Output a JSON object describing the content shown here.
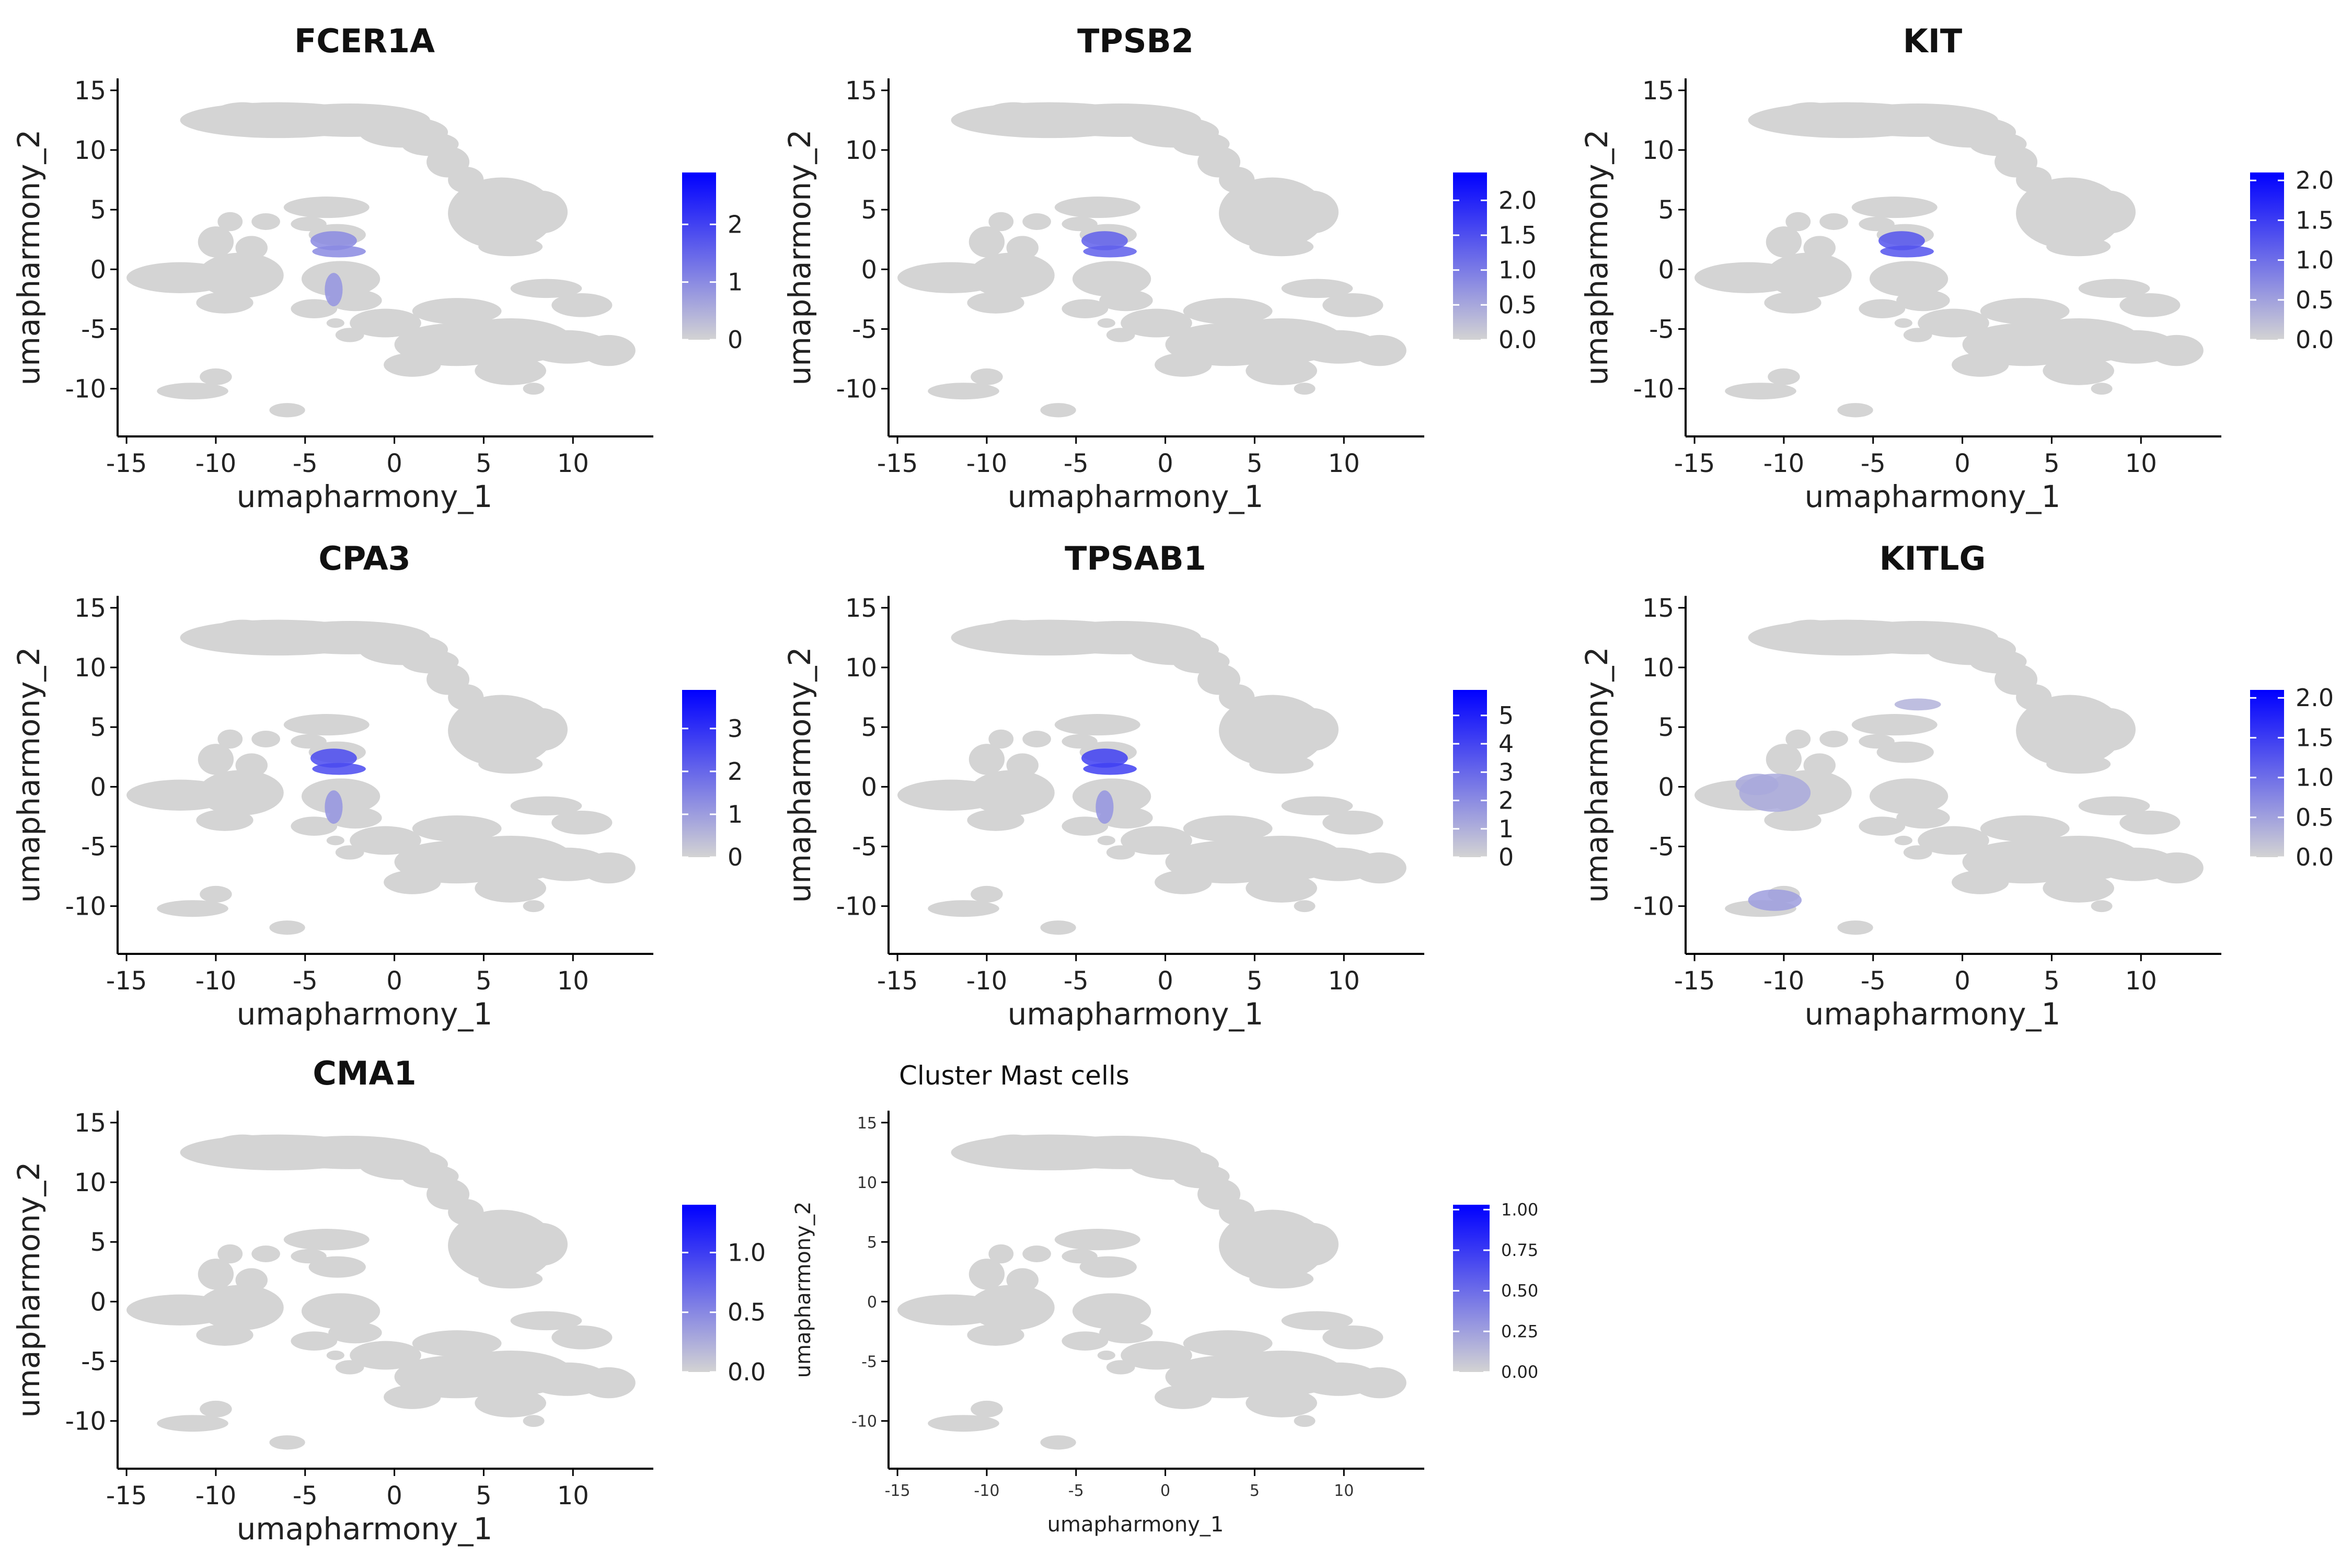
{
  "colors": {
    "low": "#d3d3d3",
    "high": "#0000ff",
    "axis": "#000000",
    "cell": "#d4d4d4"
  },
  "chart_data": [
    {
      "type": "scatter",
      "title": "FCER1A",
      "xlabel": "umapharmony_1",
      "ylabel": "umapharmony_2",
      "xlim": [
        -15.5,
        14.5
      ],
      "ylim": [
        -14,
        16
      ],
      "xticks": [
        "-15",
        "-10",
        "-5",
        "0",
        "5",
        "10"
      ],
      "yticks": [
        "-10",
        "-5",
        "0",
        "5",
        "10",
        "15"
      ],
      "legend": {
        "position": "right",
        "min": 0,
        "max": 2.9,
        "ticks": [
          "0",
          "1",
          "2"
        ]
      },
      "highlight": [
        {
          "cluster": "mast",
          "level": 0.35
        },
        {
          "cluster": "lower",
          "level": 0.3
        }
      ]
    },
    {
      "type": "scatter",
      "title": "TPSB2",
      "xlabel": "umapharmony_1",
      "ylabel": "umapharmony_2",
      "xlim": [
        -15.5,
        14.5
      ],
      "ylim": [
        -14,
        16
      ],
      "xticks": [
        "-15",
        "-10",
        "-5",
        "0",
        "5",
        "10"
      ],
      "yticks": [
        "-10",
        "-5",
        "0",
        "5",
        "10",
        "15"
      ],
      "legend": {
        "position": "right",
        "min": 0,
        "max": 2.4,
        "ticks": [
          "0.0",
          "0.5",
          "1.0",
          "1.5",
          "2.0"
        ]
      },
      "highlight": [
        {
          "cluster": "mast",
          "level": 0.55
        }
      ]
    },
    {
      "type": "scatter",
      "title": "KIT",
      "xlabel": "umapharmony_1",
      "ylabel": "umapharmony_2",
      "xlim": [
        -15.5,
        14.5
      ],
      "ylim": [
        -14,
        16
      ],
      "xticks": [
        "-15",
        "-10",
        "-5",
        "0",
        "5",
        "10"
      ],
      "yticks": [
        "-10",
        "-5",
        "0",
        "5",
        "10",
        "15"
      ],
      "legend": {
        "position": "right",
        "min": 0,
        "max": 2.1,
        "ticks": [
          "0.0",
          "0.5",
          "1.0",
          "1.5",
          "2.0"
        ]
      },
      "highlight": [
        {
          "cluster": "mast",
          "level": 0.6
        }
      ]
    },
    {
      "type": "scatter",
      "title": "CPA3",
      "xlabel": "umapharmony_1",
      "ylabel": "umapharmony_2",
      "xlim": [
        -15.5,
        14.5
      ],
      "ylim": [
        -14,
        16
      ],
      "xticks": [
        "-15",
        "-10",
        "-5",
        "0",
        "5",
        "10"
      ],
      "yticks": [
        "-10",
        "-5",
        "0",
        "5",
        "10",
        "15"
      ],
      "legend": {
        "position": "right",
        "min": 0,
        "max": 3.9,
        "ticks": [
          "0",
          "1",
          "2",
          "3"
        ]
      },
      "highlight": [
        {
          "cluster": "mast",
          "level": 0.65
        },
        {
          "cluster": "lower",
          "level": 0.3
        }
      ]
    },
    {
      "type": "scatter",
      "title": "TPSAB1",
      "xlabel": "umapharmony_1",
      "ylabel": "umapharmony_2",
      "xlim": [
        -15.5,
        14.5
      ],
      "ylim": [
        -14,
        16
      ],
      "xticks": [
        "-15",
        "-10",
        "-5",
        "0",
        "5",
        "10"
      ],
      "yticks": [
        "-10",
        "-5",
        "0",
        "5",
        "10",
        "15"
      ],
      "legend": {
        "position": "right",
        "min": 0,
        "max": 5.9,
        "ticks": [
          "0",
          "1",
          "2",
          "3",
          "4",
          "5"
        ]
      },
      "highlight": [
        {
          "cluster": "mast",
          "level": 0.7
        },
        {
          "cluster": "lower",
          "level": 0.3
        }
      ]
    },
    {
      "type": "scatter",
      "title": "KITLG",
      "xlabel": "umapharmony_1",
      "ylabel": "umapharmony_2",
      "xlim": [
        -15.5,
        14.5
      ],
      "ylim": [
        -14,
        16
      ],
      "xticks": [
        "-15",
        "-10",
        "-5",
        "0",
        "5",
        "10"
      ],
      "yticks": [
        "-10",
        "-5",
        "0",
        "5",
        "10",
        "15"
      ],
      "legend": {
        "position": "right",
        "min": 0,
        "max": 2.1,
        "ticks": [
          "0.0",
          "0.5",
          "1.0",
          "1.5",
          "2.0"
        ]
      },
      "highlight": [
        {
          "cluster": "left",
          "level": 0.2
        },
        {
          "cluster": "bottomleft",
          "level": 0.25
        },
        {
          "cluster": "upper",
          "level": 0.15
        }
      ]
    },
    {
      "type": "scatter",
      "title": "CMA1",
      "xlabel": "umapharmony_1",
      "ylabel": "umapharmony_2",
      "xlim": [
        -15.5,
        14.5
      ],
      "ylim": [
        -14,
        16
      ],
      "xticks": [
        "-15",
        "-10",
        "-5",
        "0",
        "5",
        "10"
      ],
      "yticks": [
        "-10",
        "-5",
        "0",
        "5",
        "10",
        "15"
      ],
      "legend": {
        "position": "right",
        "min": 0,
        "max": 1.4,
        "ticks": [
          "0.0",
          "0.5",
          "1.0"
        ]
      },
      "highlight": []
    },
    {
      "type": "scatter",
      "title": "Cluster Mast cells",
      "xlabel": "umapharmony_1",
      "ylabel": "umapharmony_2",
      "xlim": [
        -15.5,
        14.5
      ],
      "ylim": [
        -14,
        16
      ],
      "xticks": [
        "-15",
        "-10",
        "-5",
        "0",
        "5",
        "10"
      ],
      "yticks": [
        "-10",
        "-5",
        "0",
        "5",
        "10",
        "15"
      ],
      "legend": {
        "position": "right",
        "min": 0,
        "max": 1.03,
        "ticks": [
          "0.00",
          "0.25",
          "0.50",
          "0.75",
          "1.00"
        ]
      },
      "highlight": []
    }
  ]
}
